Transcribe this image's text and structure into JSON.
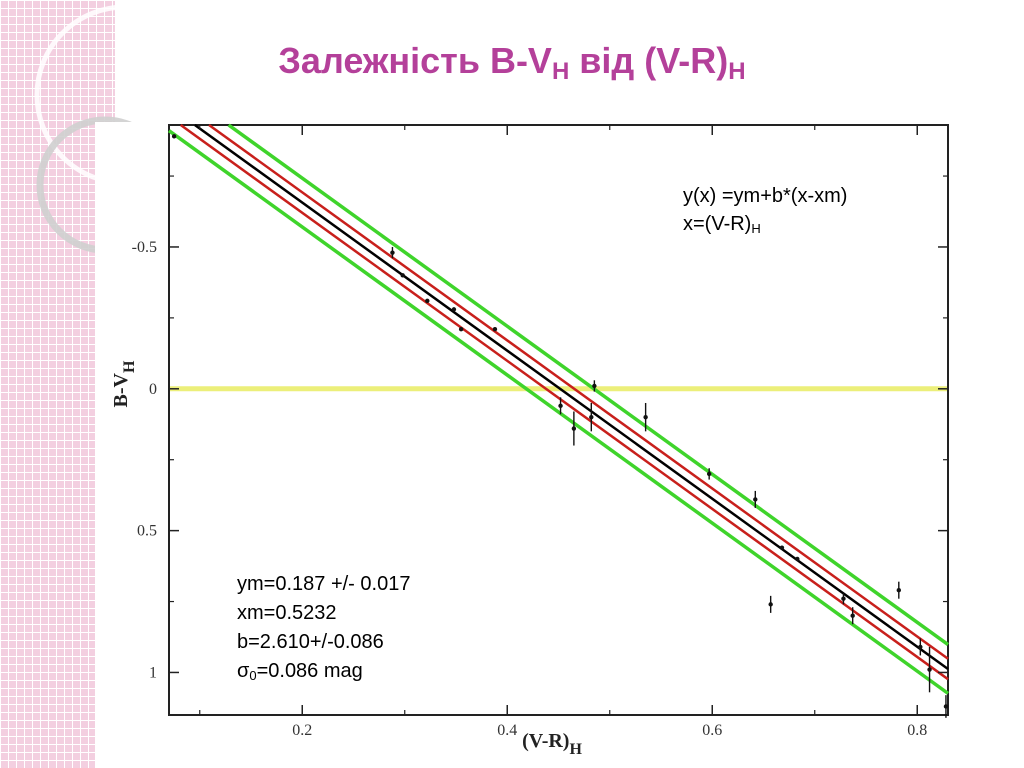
{
  "slide": {
    "title_main": "Залежність B-V",
    "title_sub1": "H",
    "title_mid": " від (V-R)",
    "title_sub2": "H"
  },
  "chart_data": {
    "type": "scatter",
    "xlabel": "(V-R)",
    "xlabel_sub": "H",
    "ylabel": "B-V",
    "ylabel_sub": "H",
    "xlim": [
      0.07,
      0.83
    ],
    "ylim": [
      1.15,
      -0.93
    ],
    "y_inverted": true,
    "x_ticks": [
      0.2,
      0.4,
      0.6,
      0.8
    ],
    "x_tick_labels": [
      "0.2",
      "0.4",
      "0.6",
      "0.8"
    ],
    "y_ticks": [
      -0.5,
      0,
      0.5,
      1
    ],
    "y_tick_labels": [
      "-0.5",
      "0",
      "0.5",
      "1"
    ],
    "points": [
      {
        "x": 0.075,
        "y": -0.89,
        "err": 0.0
      },
      {
        "x": 0.288,
        "y": -0.48,
        "err": 0.02
      },
      {
        "x": 0.298,
        "y": -0.4,
        "err": 0.0
      },
      {
        "x": 0.322,
        "y": -0.31,
        "err": 0.0
      },
      {
        "x": 0.348,
        "y": -0.28,
        "err": 0.0
      },
      {
        "x": 0.355,
        "y": -0.21,
        "err": 0.0
      },
      {
        "x": 0.388,
        "y": -0.21,
        "err": 0.0
      },
      {
        "x": 0.452,
        "y": 0.06,
        "err": 0.03
      },
      {
        "x": 0.465,
        "y": 0.14,
        "err": 0.06
      },
      {
        "x": 0.482,
        "y": 0.1,
        "err": 0.05
      },
      {
        "x": 0.485,
        "y": -0.01,
        "err": 0.02
      },
      {
        "x": 0.535,
        "y": 0.1,
        "err": 0.05
      },
      {
        "x": 0.597,
        "y": 0.3,
        "err": 0.02
      },
      {
        "x": 0.642,
        "y": 0.39,
        "err": 0.03
      },
      {
        "x": 0.657,
        "y": 0.76,
        "err": 0.03
      },
      {
        "x": 0.668,
        "y": 0.56,
        "err": 0.0
      },
      {
        "x": 0.683,
        "y": 0.6,
        "err": 0.0
      },
      {
        "x": 0.728,
        "y": 0.74,
        "err": 0.02
      },
      {
        "x": 0.737,
        "y": 0.8,
        "err": 0.03
      },
      {
        "x": 0.782,
        "y": 0.71,
        "err": 0.03
      },
      {
        "x": 0.803,
        "y": 0.91,
        "err": 0.03
      },
      {
        "x": 0.812,
        "y": 0.99,
        "err": 0.08
      },
      {
        "x": 0.828,
        "y": 1.12,
        "err": 0.04
      }
    ],
    "lines": [
      {
        "role": "fit",
        "color": "#000000",
        "ym": 0.187,
        "xm": 0.5232,
        "b": 2.61,
        "offset": 0
      },
      {
        "role": "error-upper",
        "color": "#c8201c",
        "offset": -0.036
      },
      {
        "role": "error-lower",
        "color": "#c8201c",
        "offset": 0.036
      },
      {
        "role": "sigma-upper",
        "color": "#3fd42b",
        "offset": -0.086
      },
      {
        "role": "sigma-lower",
        "color": "#3fd42b",
        "offset": 0.086
      },
      {
        "role": "zero-line",
        "color": "#ecef7a",
        "y": 0
      }
    ],
    "annotations": {
      "formula_line1": "y(x) =ym+b*(x-xm)",
      "formula_line2": "x=(V-R)",
      "formula_line2_sub": "H",
      "ym_text": "ym=0.187 +/- 0.017",
      "xm_text": "xm=0.5232",
      "b_text": "b=2.610+/-0.086",
      "sigma_symbol": "σ",
      "sigma_sub": "0",
      "sigma_text": "=0.086 mag"
    }
  }
}
